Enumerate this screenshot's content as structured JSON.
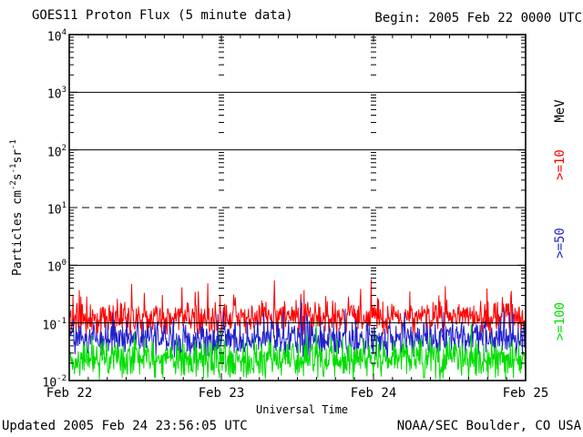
{
  "header": {
    "title": "GOES11 Proton Flux (5 minute data)",
    "begin": "Begin: 2005 Feb 22 0000 UTC"
  },
  "footer": {
    "updated": "Updated 2005 Feb 24 23:56:05 UTC",
    "source": "NOAA/SEC Boulder, CO USA"
  },
  "colors": {
    "background": "#ffffff",
    "axis": "#000000",
    "p10": "#ff0000",
    "p50": "#2222cc",
    "p100": "#00dd00"
  },
  "chart_data": {
    "type": "line",
    "title": "GOES11 Proton Flux (5 minute data)",
    "xlabel": "Universal Time",
    "ylabel_parts": [
      {
        "t": "Particles cm"
      },
      {
        "s": "-2"
      },
      {
        "t": "s"
      },
      {
        "s": "-1"
      },
      {
        "t": "sr"
      },
      {
        "s": "-1"
      }
    ],
    "right_axis_label": "MeV",
    "x_ticks": [
      "Feb 22",
      "Feb 23",
      "Feb 24",
      "Feb 25"
    ],
    "y_ticks": [
      {
        "base": "10",
        "exp": "4"
      },
      {
        "base": "10",
        "exp": "3"
      },
      {
        "base": "10",
        "exp": "2"
      },
      {
        "base": "10",
        "exp": "1"
      },
      {
        "base": "10",
        "exp": "0"
      },
      {
        "base": "10",
        "exp": "-1"
      },
      {
        "base": "10",
        "exp": "-2"
      }
    ],
    "ylim_log": [
      -2,
      4
    ],
    "x_days": 3,
    "points_per_day": 288,
    "grid": "on",
    "grid_lines": [
      {
        "exp": 3,
        "style": "solid"
      },
      {
        "exp": 2,
        "style": "solid"
      },
      {
        "exp": 1,
        "style": "dashed"
      },
      {
        "exp": 0,
        "style": "solid"
      },
      {
        "exp": -1,
        "style": "solid"
      }
    ],
    "day_boundary_markers": "log-minor-tick dashes at Feb 23 and Feb 24",
    "seed": 7,
    "series": [
      {
        "name": ">=10",
        "threshold_mev": 10,
        "color": "#ff0000",
        "center_log": -0.92,
        "spread": 0.34,
        "spike_prob": 0.1,
        "spike_amp": 0.5,
        "flux_typical": 0.12,
        "flux_min": 0.06,
        "flux_max": 0.55,
        "seed_offset": 1
      },
      {
        "name": ">=50",
        "threshold_mev": 50,
        "color": "#2222cc",
        "center_log": -1.28,
        "spread": 0.36,
        "spike_prob": 0.07,
        "spike_amp": 0.4,
        "flux_typical": 0.05,
        "flux_min": 0.025,
        "flux_max": 0.2,
        "seed_offset": 2
      },
      {
        "name": ">=100",
        "threshold_mev": 100,
        "color": "#00dd00",
        "center_log": -1.63,
        "spread": 0.4,
        "spike_prob": 0.06,
        "spike_amp": 0.4,
        "flux_typical": 0.022,
        "flux_min": 0.01,
        "flux_max": 0.09,
        "seed_offset": 3
      }
    ],
    "note": "Quiet background proton flux, no solar proton event; all channels fluctuate below 1 particle cm-2 s-1 sr-1 for the full Feb 22-25 interval"
  }
}
